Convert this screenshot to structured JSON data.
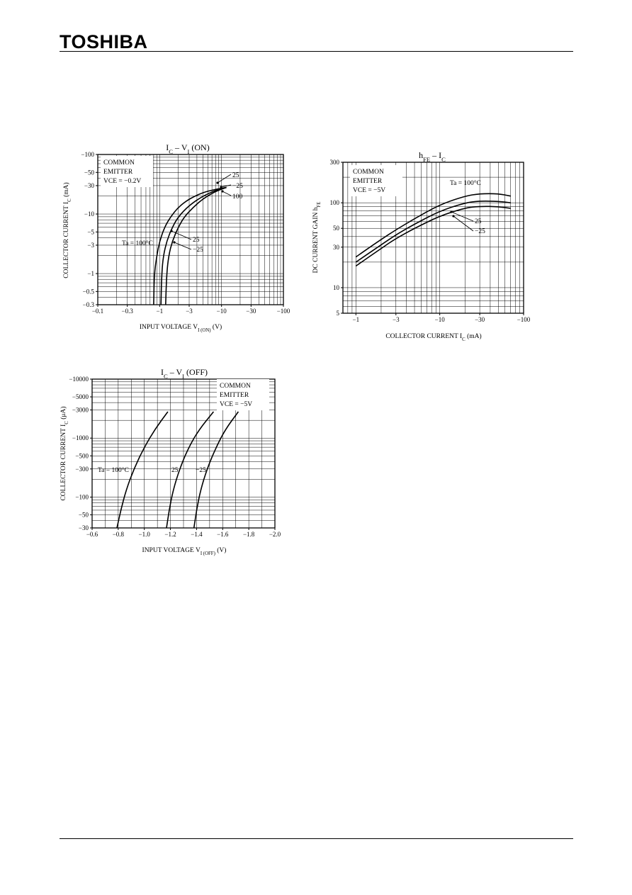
{
  "header": {
    "logo": "TOSHIBA"
  },
  "chart_data": [
    {
      "id": "c1",
      "type": "line",
      "title": "IC – VI (ON)",
      "title_parts": {
        "main": "I",
        "sub1": "C",
        "mid": " – V",
        "sub2": "I",
        "tail": " (ON)"
      },
      "xlabel_parts": {
        "main": "INPUT VOLTAGE   V",
        "sub": "I (ON)",
        "tail": "   (V)"
      },
      "ylabel_parts": {
        "main": "COLLECTOR CURRENT   I",
        "sub": "C",
        "tail": "   (mA)"
      },
      "x_scale": "log",
      "y_scale": "log",
      "xlim": [
        -0.1,
        -100
      ],
      "ylim": [
        -0.3,
        -100
      ],
      "x_ticks": [
        {
          "v": -0.1,
          "label": "−0.1"
        },
        {
          "v": -0.3,
          "label": "−0.3"
        },
        {
          "v": -1,
          "label": "−1"
        },
        {
          "v": -3,
          "label": "−3"
        },
        {
          "v": -10,
          "label": "−10"
        },
        {
          "v": -30,
          "label": "−30"
        },
        {
          "v": -100,
          "label": "−100"
        }
      ],
      "y_ticks": [
        {
          "v": -100,
          "label": "−100"
        },
        {
          "v": -50,
          "label": "−50"
        },
        {
          "v": -30,
          "label": "−30"
        },
        {
          "v": -10,
          "label": "−10"
        },
        {
          "v": -5,
          "label": "−5"
        },
        {
          "v": -3,
          "label": "−3"
        },
        {
          "v": -1,
          "label": "−1"
        },
        {
          "v": -0.5,
          "label": "−0.5"
        },
        {
          "v": -0.3,
          "label": "−0.3"
        }
      ],
      "condition": [
        "COMMON",
        "EMITTER",
        "VCE = −0.2V"
      ],
      "series": [
        {
          "name": "Ta = 100°C",
          "x": [
            -0.8,
            -0.82,
            -0.9,
            -1.0,
            -1.2,
            -1.5,
            -2.0,
            -3.0,
            -5.0,
            -8.0,
            -12.0
          ],
          "y": [
            -0.3,
            -1.0,
            -2.0,
            -3.5,
            -6.0,
            -9.0,
            -13.0,
            -18.0,
            -23.0,
            -26.0,
            -28.0
          ]
        },
        {
          "name": "25",
          "x": [
            -1.05,
            -1.08,
            -1.15,
            -1.3,
            -1.6,
            -2.0,
            -3.0,
            -5.0,
            -8.0,
            -12.0
          ],
          "y": [
            -0.3,
            -1.0,
            -2.0,
            -3.5,
            -6.0,
            -9.0,
            -14.0,
            -20.0,
            -25.0,
            -28.0
          ]
        },
        {
          "name": "−25",
          "x": [
            -1.25,
            -1.3,
            -1.4,
            -1.6,
            -2.0,
            -2.5,
            -3.5,
            -5.0,
            -8.0,
            -12.0
          ],
          "y": [
            -0.3,
            -1.0,
            -2.0,
            -3.5,
            -6.0,
            -9.0,
            -13.0,
            -18.0,
            -24.0,
            -28.0
          ]
        }
      ],
      "annotations": [
        "25",
        "−25",
        "100",
        "25",
        "−25",
        "Ta = 100°C"
      ]
    },
    {
      "id": "c2",
      "type": "line",
      "title": "hFE – IC",
      "title_parts": {
        "main": "h",
        "sub1": "FE",
        "mid": " – I",
        "sub2": "C",
        "tail": ""
      },
      "xlabel_parts": {
        "main": "COLLECTOR CURRENT   I",
        "sub": "C",
        "tail": "   (mA)"
      },
      "ylabel_parts": {
        "main": "DC CURRENT GAIN   h",
        "sub": "FE",
        "tail": ""
      },
      "x_scale": "log",
      "y_scale": "log",
      "xlim": [
        -0.7,
        -100
      ],
      "ylim": [
        5,
        300
      ],
      "x_ticks": [
        {
          "v": -1,
          "label": "−1"
        },
        {
          "v": -3,
          "label": "−3"
        },
        {
          "v": -10,
          "label": "−10"
        },
        {
          "v": -30,
          "label": "−30"
        },
        {
          "v": -100,
          "label": "−100"
        }
      ],
      "y_ticks": [
        {
          "v": 300,
          "label": "300"
        },
        {
          "v": 100,
          "label": "100"
        },
        {
          "v": 50,
          "label": "50"
        },
        {
          "v": 30,
          "label": "30"
        },
        {
          "v": 10,
          "label": "10"
        },
        {
          "v": 5,
          "label": "5"
        }
      ],
      "condition": [
        "COMMON",
        "EMITTER",
        "VCE = −5V"
      ],
      "series": [
        {
          "name": "Ta = 100°C",
          "x": [
            -1,
            -2,
            -3,
            -5,
            -10,
            -20,
            -30,
            -50,
            -70
          ],
          "y": [
            23,
            37,
            48,
            65,
            95,
            120,
            128,
            128,
            120
          ]
        },
        {
          "name": "25",
          "x": [
            -1,
            -2,
            -3,
            -5,
            -10,
            -20,
            -30,
            -50,
            -70
          ],
          "y": [
            20,
            32,
            42,
            56,
            80,
            100,
            105,
            104,
            100
          ]
        },
        {
          "name": "−25",
          "x": [
            -1,
            -2,
            -3,
            -5,
            -10,
            -20,
            -30,
            -50,
            -70
          ],
          "y": [
            18,
            29,
            38,
            50,
            70,
            87,
            91,
            90,
            86
          ]
        }
      ],
      "annotations": [
        "Ta = 100°C",
        "25",
        "−25"
      ]
    },
    {
      "id": "c3",
      "type": "line",
      "title": "IC – VI (OFF)",
      "title_parts": {
        "main": "I",
        "sub1": "C",
        "mid": " – V",
        "sub2": "I",
        "tail": " (OFF)"
      },
      "xlabel_parts": {
        "main": "INPUT VOLTAGE   V",
        "sub": "I (OFF)",
        "tail": "   (V)"
      },
      "ylabel_parts": {
        "main": "COLLECTOR CURRENT   I",
        "sub": "C",
        "tail": "   (μA)"
      },
      "x_scale": "linear",
      "y_scale": "log",
      "xlim": [
        -0.6,
        -2.0
      ],
      "ylim": [
        -30,
        -10000
      ],
      "x_ticks": [
        {
          "v": -0.6,
          "label": "−0.6"
        },
        {
          "v": -0.8,
          "label": "−0.8"
        },
        {
          "v": -1.0,
          "label": "−1.0"
        },
        {
          "v": -1.2,
          "label": "−1.2"
        },
        {
          "v": -1.4,
          "label": "−1.4"
        },
        {
          "v": -1.6,
          "label": "−1.6"
        },
        {
          "v": -1.8,
          "label": "−1.8"
        },
        {
          "v": -2.0,
          "label": "−2.0"
        }
      ],
      "y_ticks": [
        {
          "v": -10000,
          "label": "−10000"
        },
        {
          "v": -5000,
          "label": "−5000"
        },
        {
          "v": -3000,
          "label": "−3000"
        },
        {
          "v": -1000,
          "label": "−1000"
        },
        {
          "v": -500,
          "label": "−500"
        },
        {
          "v": -300,
          "label": "−300"
        },
        {
          "v": -100,
          "label": "−100"
        },
        {
          "v": -50,
          "label": "−50"
        },
        {
          "v": -30,
          "label": "−30"
        }
      ],
      "condition": [
        "COMMON",
        "EMITTER",
        "VCE = −5V"
      ],
      "series": [
        {
          "name": "Ta = 100°C",
          "x": [
            -0.79,
            -0.82,
            -0.86,
            -0.92,
            -1.0,
            -1.08,
            -1.18
          ],
          "y": [
            -30,
            -60,
            -130,
            -300,
            -700,
            -1400,
            -2800
          ]
        },
        {
          "name": "25",
          "x": [
            -1.17,
            -1.19,
            -1.22,
            -1.27,
            -1.34,
            -1.42,
            -1.53
          ],
          "y": [
            -30,
            -60,
            -130,
            -300,
            -700,
            -1400,
            -2800
          ]
        },
        {
          "name": "−25",
          "x": [
            -1.38,
            -1.4,
            -1.43,
            -1.48,
            -1.55,
            -1.62,
            -1.72
          ],
          "y": [
            -30,
            -60,
            -130,
            -300,
            -700,
            -1400,
            -2800
          ]
        }
      ],
      "annotations": [
        "Ta = 100°C",
        "25",
        "−25"
      ]
    }
  ]
}
